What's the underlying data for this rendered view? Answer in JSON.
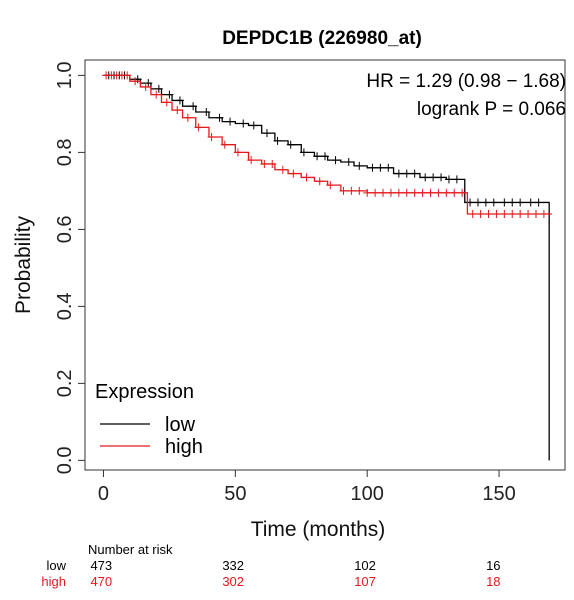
{
  "chart_data": {
    "type": "line",
    "title": "DEPDC1B (226980_at)",
    "xlabel": "Time (months)",
    "ylabel": "Probability",
    "xlim": [
      -7,
      175
    ],
    "ylim": [
      -0.025,
      1.04
    ],
    "x_ticks": [
      0,
      50,
      100,
      150
    ],
    "y_ticks": [
      0.0,
      0.2,
      0.4,
      0.6,
      0.8,
      1.0
    ],
    "y_tick_labels": [
      "0.0",
      "0.2",
      "0.4",
      "0.6",
      "0.8",
      "1.0"
    ],
    "grid": false,
    "annotations": [
      "HR = 1.29 (0.98 − 1.68)",
      "logrank P = 0.066"
    ],
    "legend": {
      "title": "Expression",
      "position": "bottom-left",
      "entries": [
        "low",
        "high"
      ]
    },
    "series": [
      {
        "name": "low",
        "color": "#000000",
        "x": [
          0,
          5,
          10,
          14,
          18,
          22,
          26,
          30,
          35,
          40,
          45,
          50,
          55,
          60,
          65,
          70,
          75,
          80,
          85,
          90,
          95,
          100,
          110,
          120,
          130,
          137,
          150,
          160,
          169,
          169
        ],
        "y": [
          1.0,
          1.0,
          0.99,
          0.98,
          0.965,
          0.95,
          0.935,
          0.92,
          0.905,
          0.89,
          0.88,
          0.875,
          0.87,
          0.85,
          0.83,
          0.82,
          0.8,
          0.79,
          0.78,
          0.775,
          0.765,
          0.76,
          0.745,
          0.735,
          0.73,
          0.67,
          0.67,
          0.67,
          0.67,
          0.0
        ],
        "censor_x": [
          2,
          4,
          6,
          8,
          13,
          17,
          21,
          25,
          29,
          34,
          39,
          44,
          48,
          53,
          57,
          62,
          66,
          71,
          76,
          81,
          84,
          88,
          93,
          97,
          102,
          105,
          108,
          112,
          115,
          118,
          122,
          125,
          128,
          131,
          134,
          139,
          142,
          145,
          148,
          152,
          155,
          158,
          162,
          165
        ]
      },
      {
        "name": "high",
        "color": "#e31a1c",
        "x": [
          0,
          6,
          10,
          14,
          18,
          22,
          26,
          30,
          35,
          40,
          45,
          50,
          55,
          60,
          65,
          70,
          75,
          80,
          85,
          90,
          100,
          110,
          120,
          130,
          136,
          138,
          150,
          160,
          170
        ],
        "y": [
          1.0,
          1.0,
          0.985,
          0.97,
          0.95,
          0.93,
          0.91,
          0.89,
          0.865,
          0.84,
          0.82,
          0.8,
          0.78,
          0.77,
          0.755,
          0.745,
          0.735,
          0.725,
          0.715,
          0.7,
          0.695,
          0.695,
          0.695,
          0.695,
          0.695,
          0.64,
          0.64,
          0.64,
          0.64
        ],
        "censor_x": [
          1,
          3,
          5,
          7,
          9,
          12,
          16,
          20,
          24,
          28,
          32,
          36,
          41,
          46,
          51,
          56,
          61,
          64,
          68,
          72,
          77,
          82,
          86,
          91,
          94,
          97,
          100,
          103,
          106,
          109,
          112,
          115,
          118,
          121,
          124,
          127,
          130,
          133,
          136,
          140,
          143,
          146,
          149,
          152,
          155,
          158,
          161,
          164,
          167
        ]
      }
    ],
    "number_at_risk": {
      "header": "Number at risk",
      "times": [
        0,
        50,
        100,
        150
      ],
      "rows": [
        {
          "label": "low",
          "values": [
            "473",
            "332",
            "102",
            "16"
          ],
          "color": "#000000"
        },
        {
          "label": "high",
          "values": [
            "470",
            "302",
            "107",
            "18"
          ],
          "color": "#e31a1c"
        }
      ]
    }
  }
}
